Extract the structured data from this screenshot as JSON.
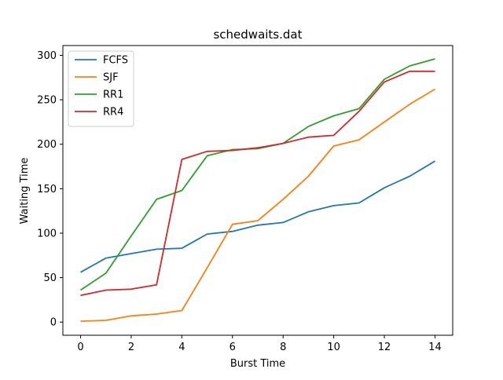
{
  "chart_data": {
    "type": "line",
    "title": "schedwaits.dat",
    "xlabel": "Burst Time",
    "ylabel": "Waiting Time",
    "xlim": [
      -0.7,
      14.7
    ],
    "ylim": [
      -14.8,
      311
    ],
    "xticks": [
      0,
      2,
      4,
      6,
      8,
      10,
      12,
      14
    ],
    "yticks": [
      0,
      50,
      100,
      150,
      200,
      250,
      300
    ],
    "grid": false,
    "legend_position": "top-left",
    "x": [
      0,
      1,
      2,
      3,
      4,
      5,
      6,
      7,
      8,
      9,
      10,
      11,
      12,
      13,
      14
    ],
    "series": [
      {
        "name": "FCFS",
        "color": "#1f77b4",
        "values": [
          56,
          72,
          77,
          82,
          83,
          99,
          102,
          109,
          112,
          124,
          131,
          134,
          151,
          164,
          181
        ]
      },
      {
        "name": "SJF",
        "color": "#ff7f0e",
        "values": [
          1,
          2,
          7,
          9,
          13,
          61,
          110,
          114,
          138,
          164,
          198,
          205,
          225,
          245,
          262
        ]
      },
      {
        "name": "RR1",
        "color": "#2ca02c",
        "values": [
          36,
          55,
          97,
          138,
          148,
          187,
          194,
          195,
          201,
          220,
          232,
          240,
          273,
          288,
          296
        ]
      },
      {
        "name": "RR4",
        "color": "#d62728",
        "values": [
          30,
          36,
          37,
          42,
          183,
          192,
          193,
          196,
          201,
          208,
          210,
          237,
          270,
          282,
          282
        ]
      }
    ]
  }
}
